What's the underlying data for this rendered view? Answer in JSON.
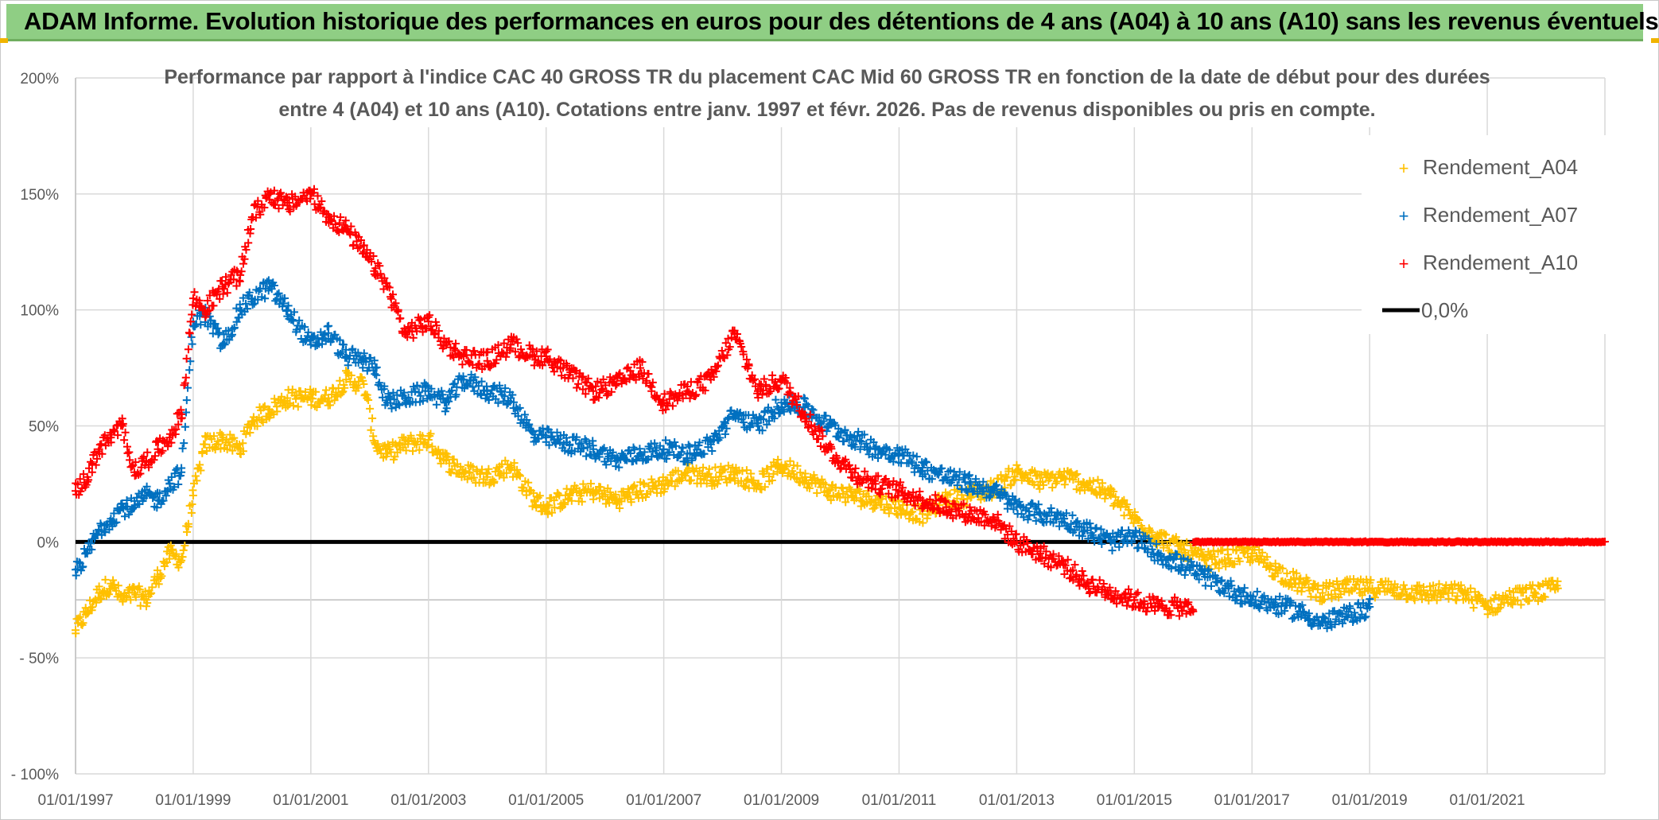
{
  "header": {
    "title": "ADAM Informe. Evolution historique des performances en euros pour des détentions de 4 ans (A04) à 10 ans (A10) sans les revenus éventuels"
  },
  "colors": {
    "header_bg": "#8fce84",
    "a04": "#ffc000",
    "a07": "#0070c0",
    "a10": "#ff0000",
    "zero_line": "#000000",
    "grid": "#d9d9d9",
    "text": "#595959"
  },
  "chart_data": {
    "type": "scatter",
    "title_lines": [
      "Performance par rapport à l'indice CAC 40 GROSS TR  du placement CAC Mid 60 GROSS TR en fonction de la date de début pour des durées",
      "entre 4 (A04) et 10 ans (A10). Cotations entre janv. 1997 et févr. 2026. Pas de revenus disponibles ou pris en compte."
    ],
    "x_axis": {
      "min": 1997.0,
      "max": 2023.0,
      "ticks": [
        1997,
        1999,
        2001,
        2003,
        2005,
        2007,
        2009,
        2011,
        2013,
        2015,
        2017,
        2019,
        2021
      ],
      "tick_labels": [
        "01/01/1997",
        "01/01/1999",
        "01/01/2001",
        "01/01/2003",
        "01/01/2005",
        "01/01/2007",
        "01/01/2009",
        "01/01/2011",
        "01/01/2013",
        "01/01/2015",
        "01/01/2017",
        "01/01/2019",
        "01/01/2021"
      ]
    },
    "y_axis": {
      "min": -100,
      "max": 200,
      "ticks": [
        200,
        150,
        100,
        50,
        0,
        -50,
        -100
      ],
      "tick_labels": [
        "200%",
        "150%",
        "100%",
        "50%",
        "0%",
        "- 50%",
        "- 100%"
      ]
    },
    "legend": [
      {
        "name": "Rendement_A04",
        "marker": "+",
        "color": "#ffc000"
      },
      {
        "name": "Rendement_A07",
        "marker": "+",
        "color": "#0070c0"
      },
      {
        "name": "Rendement_A10",
        "marker": "+",
        "color": "#ff0000"
      },
      {
        "name": "0,0%",
        "marker": "line",
        "color": "#000000"
      }
    ],
    "series": [
      {
        "name": "Rendement_A04",
        "color": "#ffc000",
        "x": [
          1997.0,
          1997.2,
          1997.4,
          1997.6,
          1997.8,
          1998.0,
          1998.2,
          1998.4,
          1998.6,
          1998.8,
          1999.0,
          1999.2,
          1999.5,
          1999.8,
          2000.0,
          2000.3,
          2000.6,
          2001.0,
          2001.3,
          2001.6,
          2001.9,
          2002.1,
          2002.3,
          2002.6,
          2003.0,
          2003.3,
          2003.6,
          2004.0,
          2004.4,
          2004.8,
          2005.0,
          2005.4,
          2005.8,
          2006.2,
          2006.6,
          2007.0,
          2007.4,
          2007.8,
          2008.2,
          2008.6,
          2009.0,
          2009.4,
          2009.8,
          2010.2,
          2010.6,
          2011.0,
          2011.4,
          2011.8,
          2012.2,
          2012.6,
          2013.0,
          2013.4,
          2013.8,
          2014.2,
          2014.6,
          2015.0,
          2015.4,
          2015.8,
          2016.2,
          2016.6,
          2017.0,
          2017.4,
          2017.8,
          2018.2,
          2018.6,
          2019.0,
          2019.4,
          2019.8,
          2020.2,
          2020.6,
          2021.0,
          2021.4,
          2021.8,
          2022.2
        ],
        "y": [
          -38,
          -30,
          -22,
          -18,
          -25,
          -22,
          -25,
          -15,
          -5,
          -8,
          20,
          42,
          44,
          40,
          52,
          57,
          62,
          62,
          62,
          70,
          68,
          42,
          38,
          42,
          44,
          35,
          30,
          28,
          33,
          18,
          15,
          20,
          22,
          18,
          22,
          25,
          30,
          28,
          30,
          25,
          33,
          28,
          22,
          20,
          18,
          15,
          12,
          18,
          20,
          23,
          30,
          26,
          28,
          25,
          20,
          10,
          2,
          -3,
          -8,
          -7,
          -5,
          -12,
          -18,
          -22,
          -20,
          -20,
          -20,
          -22,
          -22,
          -22,
          -28,
          -24,
          -22,
          -20
        ]
      },
      {
        "name": "Rendement_A07",
        "color": "#0070c0",
        "x": [
          1997.0,
          1997.2,
          1997.4,
          1997.6,
          1997.8,
          1998.0,
          1998.2,
          1998.4,
          1998.6,
          1998.8,
          1999.0,
          1999.2,
          1999.5,
          1999.8,
          2000.0,
          2000.3,
          2000.6,
          2001.0,
          2001.3,
          2001.6,
          2001.9,
          2002.1,
          2002.3,
          2002.6,
          2003.0,
          2003.3,
          2003.6,
          2004.0,
          2004.4,
          2004.8,
          2005.0,
          2005.4,
          2005.8,
          2006.2,
          2006.6,
          2007.0,
          2007.4,
          2007.8,
          2008.2,
          2008.6,
          2009.0,
          2009.4,
          2009.8,
          2010.2,
          2010.6,
          2011.0,
          2011.4,
          2011.8,
          2012.2,
          2012.6,
          2013.0,
          2013.4,
          2013.8,
          2014.2,
          2014.6,
          2015.0,
          2015.4,
          2015.8,
          2016.2,
          2016.6,
          2017.0,
          2017.4,
          2017.8,
          2018.2,
          2018.6,
          2019.0
        ],
        "y": [
          -12,
          -5,
          5,
          10,
          15,
          15,
          20,
          18,
          25,
          30,
          95,
          98,
          85,
          100,
          105,
          110,
          100,
          85,
          90,
          80,
          78,
          75,
          60,
          62,
          65,
          60,
          70,
          65,
          62,
          45,
          45,
          42,
          40,
          35,
          38,
          40,
          38,
          42,
          55,
          50,
          60,
          58,
          50,
          45,
          40,
          38,
          32,
          28,
          25,
          22,
          15,
          12,
          10,
          5,
          0,
          2,
          -5,
          -10,
          -15,
          -20,
          -25,
          -27,
          -30,
          -35,
          -32,
          -28
        ]
      },
      {
        "name": "Rendement_A10",
        "color": "#ff0000",
        "x": [
          1997.0,
          1997.2,
          1997.4,
          1997.6,
          1997.8,
          1998.0,
          1998.2,
          1998.4,
          1998.6,
          1998.8,
          1999.0,
          1999.2,
          1999.5,
          1999.8,
          2000.0,
          2000.3,
          2000.6,
          2001.0,
          2001.3,
          2001.6,
          2001.9,
          2002.1,
          2002.3,
          2002.6,
          2003.0,
          2003.3,
          2003.6,
          2004.0,
          2004.4,
          2004.8,
          2005.0,
          2005.4,
          2005.8,
          2006.2,
          2006.6,
          2007.0,
          2007.4,
          2007.8,
          2008.2,
          2008.6,
          2009.0,
          2009.4,
          2009.8,
          2010.2,
          2010.6,
          2011.0,
          2011.4,
          2011.8,
          2012.2,
          2012.6,
          2013.0,
          2013.4,
          2013.8,
          2014.2,
          2014.6,
          2015.0,
          2015.4,
          2015.8,
          2016.0
        ],
        "y": [
          22,
          28,
          40,
          45,
          50,
          30,
          35,
          40,
          45,
          55,
          105,
          100,
          110,
          115,
          140,
          150,
          145,
          150,
          140,
          135,
          125,
          118,
          110,
          90,
          95,
          85,
          80,
          78,
          85,
          80,
          80,
          72,
          65,
          68,
          75,
          60,
          65,
          70,
          90,
          65,
          70,
          55,
          40,
          30,
          25,
          22,
          18,
          15,
          12,
          10,
          0,
          -5,
          -10,
          -18,
          -22,
          -25,
          -28,
          -28,
          -30
        ]
      },
      {
        "name": "0,0%",
        "color": "#000000",
        "x": [
          1997.0,
          2023.0
        ],
        "y": [
          0,
          0
        ]
      }
    ],
    "flat_segment": {
      "series": "Rendement_A10",
      "x_start": 2016.0,
      "x_end": 2023.0,
      "y": 0
    }
  }
}
